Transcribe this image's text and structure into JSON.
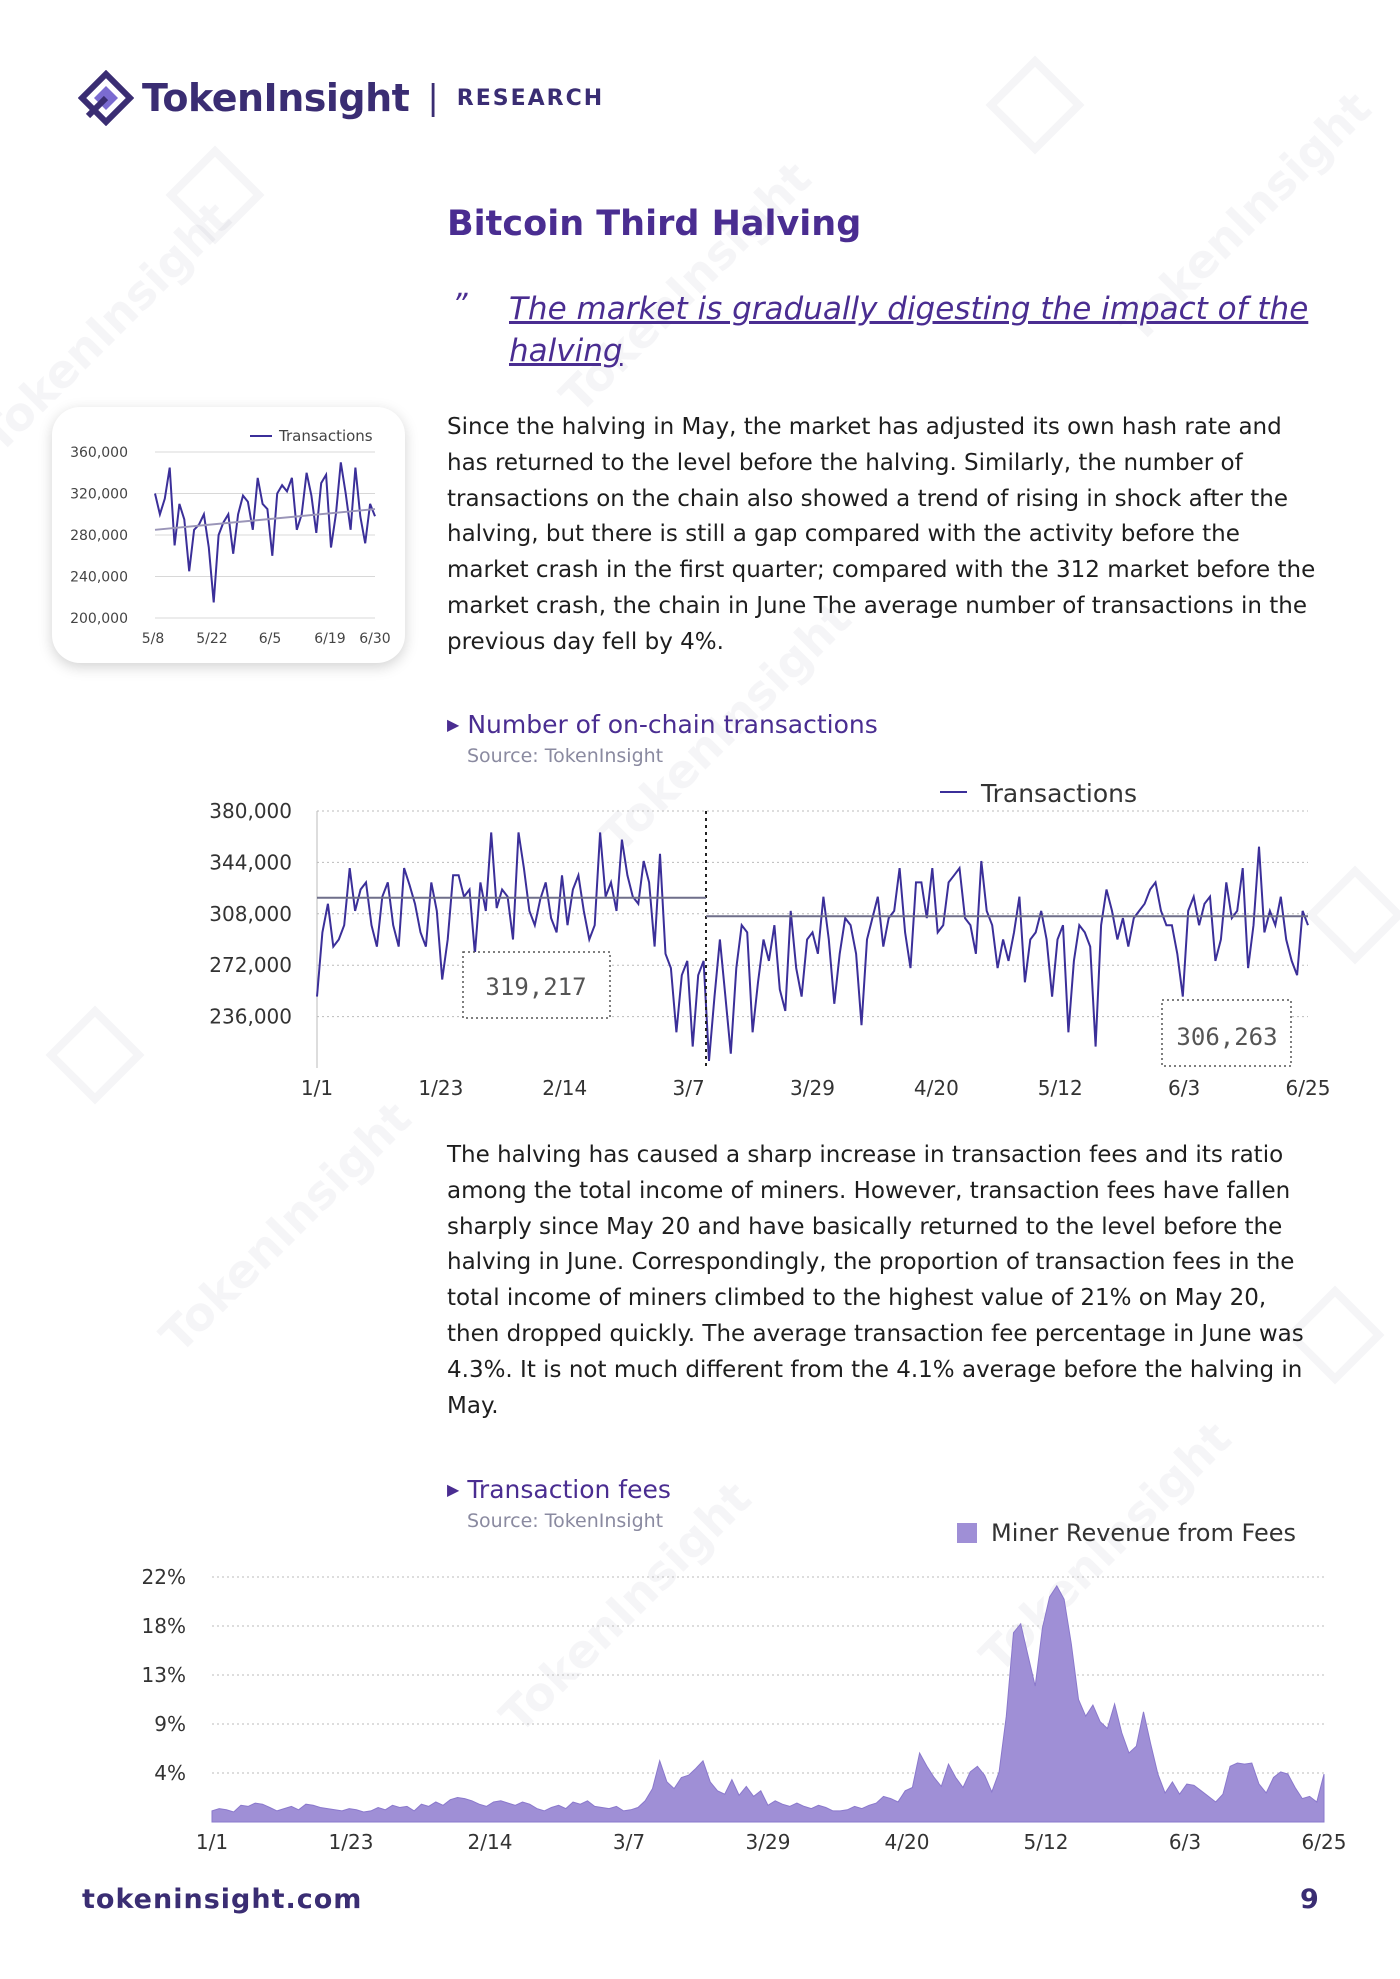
{
  "header": {
    "brand": "TokenInsight",
    "separator": "|",
    "section": "RESEARCH"
  },
  "title": "Bitcoin Third Halving",
  "quote_mark": "”",
  "quote": "The market is gradually digesting the impact of the halving",
  "paragraph1": "Since the halving in May, the market has adjusted its own hash rate and has returned to the level before the halving. Similarly, the number of transactions on the chain also showed a trend of rising in shock after the halving, but there is still a gap compared with the activity before the market crash in the first quarter; compared with the 312 market before the market crash, the chain in June The average number of transactions in the previous day fell by 4%.",
  "paragraph2": "The halving has caused a sharp increase in transaction fees and its ratio among the total income of miners. However, transaction fees have fallen sharply since May 20 and have basically returned to the level before the halving in June. Correspondingly, the proportion of transaction fees in the total income of miners climbed to the highest value of 21% on May 20, then dropped quickly. The average transaction fee percentage in June was 4.3%. It is not much different from the 4.1% average before the halving in May.",
  "section1": {
    "heading": "Number of on-chain transactions",
    "source": "Source: TokenInsight"
  },
  "section2": {
    "heading": "Transaction fees",
    "source": "Source: TokenInsight"
  },
  "footer": {
    "url": "tokeninsight.com",
    "page": "9"
  },
  "watermark": "TokenInsight",
  "colors": {
    "brand": "#3a2d73",
    "accent": "#4a2d91",
    "line": "#3b2f99",
    "area": "#9f8fd6"
  },
  "chart_data": [
    {
      "id": "small",
      "type": "line",
      "legend": "Transactions",
      "xticks": [
        "5/8",
        "5/22",
        "6/5",
        "6/19",
        "6/30"
      ],
      "yticks": [
        "200,000",
        "240,000",
        "280,000",
        "320,000",
        "360,000"
      ],
      "ylim": [
        200000,
        360000
      ],
      "values": [
        320000,
        300000,
        315000,
        345000,
        270000,
        310000,
        295000,
        245000,
        285000,
        290000,
        300000,
        268000,
        215000,
        280000,
        292000,
        300000,
        262000,
        300000,
        318000,
        312000,
        285000,
        335000,
        310000,
        305000,
        260000,
        320000,
        328000,
        322000,
        335000,
        285000,
        300000,
        340000,
        318000,
        282000,
        330000,
        338000,
        268000,
        300000,
        350000,
        320000,
        285000,
        345000,
        298000,
        272000,
        310000,
        298000
      ],
      "trend": [
        285000,
        305000
      ]
    },
    {
      "id": "transactions",
      "type": "line",
      "legend": "Transactions",
      "xticks": [
        "1/1",
        "1/23",
        "2/14",
        "3/7",
        "3/29",
        "4/20",
        "5/12",
        "6/3",
        "6/25"
      ],
      "yticks": [
        "380,000",
        "344,000",
        "308,000",
        "272,000",
        "236,000"
      ],
      "ylim": [
        200000,
        380000
      ],
      "annotations": [
        {
          "label": "319,217",
          "value": 319217,
          "segment": "before"
        },
        {
          "label": "306,263",
          "value": 306263,
          "segment": "after"
        }
      ],
      "values": [
        250000,
        295000,
        315000,
        285000,
        290000,
        300000,
        340000,
        310000,
        325000,
        330000,
        300000,
        285000,
        320000,
        330000,
        300000,
        285000,
        340000,
        328000,
        315000,
        295000,
        285000,
        330000,
        310000,
        262000,
        290000,
        335000,
        335000,
        320000,
        325000,
        280000,
        330000,
        310000,
        365000,
        312000,
        325000,
        320000,
        290000,
        365000,
        340000,
        310000,
        300000,
        318000,
        330000,
        305000,
        295000,
        335000,
        300000,
        325000,
        335000,
        310000,
        290000,
        300000,
        365000,
        320000,
        330000,
        310000,
        360000,
        335000,
        320000,
        315000,
        345000,
        330000,
        285000,
        350000,
        280000,
        270000,
        225000,
        265000,
        275000,
        215000,
        265000,
        275000,
        205000,
        250000,
        290000,
        250000,
        210000,
        270000,
        300000,
        295000,
        225000,
        260000,
        290000,
        275000,
        300000,
        255000,
        240000,
        310000,
        270000,
        250000,
        290000,
        295000,
        280000,
        320000,
        290000,
        245000,
        280000,
        305000,
        300000,
        280000,
        230000,
        290000,
        305000,
        320000,
        285000,
        305000,
        310000,
        340000,
        295000,
        270000,
        330000,
        330000,
        305000,
        340000,
        295000,
        300000,
        330000,
        335000,
        340000,
        305000,
        300000,
        280000,
        345000,
        310000,
        300000,
        270000,
        290000,
        275000,
        295000,
        320000,
        260000,
        290000,
        295000,
        310000,
        290000,
        250000,
        290000,
        300000,
        225000,
        275000,
        300000,
        295000,
        285000,
        215000,
        300000,
        325000,
        310000,
        290000,
        305000,
        285000,
        305000,
        310000,
        315000,
        325000,
        330000,
        310000,
        300000,
        300000,
        280000,
        250000,
        310000,
        320000,
        300000,
        315000,
        320000,
        275000,
        290000,
        330000,
        305000,
        310000,
        340000,
        270000,
        300000,
        355000,
        295000,
        310000,
        300000,
        320000,
        290000,
        275000,
        265000,
        310000,
        300000
      ]
    },
    {
      "id": "fees",
      "type": "area",
      "legend": "Miner Revenue from Fees",
      "xticks": [
        "1/1",
        "1/23",
        "2/14",
        "3/7",
        "3/29",
        "4/20",
        "5/12",
        "6/3",
        "6/25"
      ],
      "yticks": [
        "22%",
        "18%",
        "13%",
        "9%",
        "4%"
      ],
      "ylim": [
        0,
        22
      ],
      "values": [
        1.0,
        1.2,
        1.1,
        0.9,
        1.5,
        1.4,
        1.7,
        1.6,
        1.3,
        1.0,
        1.2,
        1.4,
        1.1,
        1.6,
        1.5,
        1.3,
        1.2,
        1.1,
        1.0,
        1.2,
        1.1,
        0.9,
        1.0,
        1.3,
        1.1,
        1.5,
        1.3,
        1.4,
        1.0,
        1.6,
        1.4,
        1.8,
        1.5,
        2.0,
        2.2,
        2.1,
        1.9,
        1.6,
        1.4,
        1.8,
        1.9,
        1.7,
        1.5,
        1.8,
        1.6,
        1.2,
        1.0,
        1.3,
        1.5,
        1.2,
        1.8,
        1.6,
        1.9,
        1.4,
        1.3,
        1.2,
        1.4,
        1.0,
        1.1,
        1.3,
        1.9,
        3.0,
        5.5,
        3.6,
        3.0,
        4.0,
        4.2,
        4.8,
        5.5,
        3.6,
        2.8,
        2.5,
        3.8,
        2.4,
        3.2,
        2.3,
        2.8,
        1.5,
        1.9,
        1.6,
        1.4,
        1.7,
        1.4,
        1.2,
        1.5,
        1.3,
        1.0,
        1.0,
        1.1,
        1.4,
        1.2,
        1.5,
        1.7,
        2.3,
        2.1,
        1.8,
        2.8,
        3.1,
        6.2,
        5.0,
        4.0,
        3.2,
        5.2,
        4.0,
        3.1,
        4.5,
        5.0,
        4.2,
        2.7,
        4.5,
        9.5,
        17.0,
        17.8,
        15.0,
        12.2,
        17.4,
        20.2,
        21.2,
        20.0,
        16.0,
        11.0,
        9.5,
        10.5,
        9.0,
        8.4,
        10.6,
        8.0,
        6.2,
        6.8,
        9.9,
        7.0,
        4.3,
        2.6,
        3.6,
        2.5,
        3.4,
        3.3,
        2.8,
        2.3,
        1.8,
        2.5,
        5.0,
        5.3,
        5.2,
        5.3,
        3.4,
        2.6,
        4.0,
        4.5,
        4.3,
        3.1,
        2.1,
        2.3,
        1.8,
        4.3
      ]
    }
  ]
}
